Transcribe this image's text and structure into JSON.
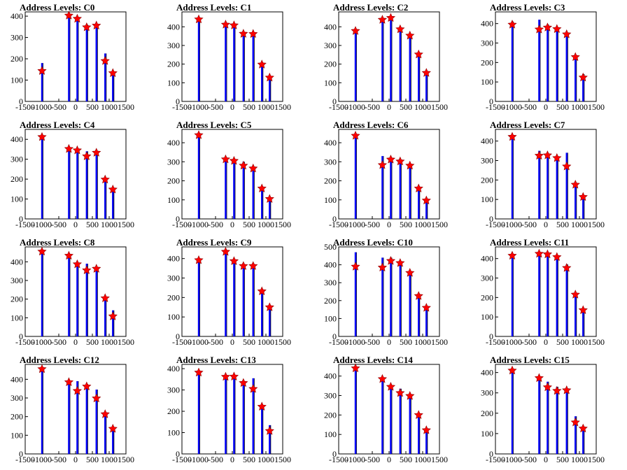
{
  "figure": {
    "background": "#ffffff",
    "bar_color": "#0000ff",
    "thin_line_color": "#000000",
    "marker_color": "#ff0000",
    "marker_shape": "star"
  },
  "chart_data": [
    {
      "type": "bar",
      "title": "Address Levels: C0",
      "xlim": [
        -1500,
        1500
      ],
      "ylim": [
        0,
        420
      ],
      "x_ticks": [
        -1500,
        -1000,
        -500,
        0,
        500,
        1000,
        1500
      ],
      "y_ticks": [
        0,
        100,
        200,
        300,
        400
      ],
      "peaks": [
        {
          "x": -1000,
          "bar": 180,
          "star": 143
        },
        {
          "x": -200,
          "bar": 400,
          "star": 403
        },
        {
          "x": 50,
          "bar": 390,
          "star": 388
        },
        {
          "x": 330,
          "bar": 360,
          "star": 348
        },
        {
          "x": 620,
          "bar": 360,
          "star": 356
        },
        {
          "x": 880,
          "bar": 225,
          "star": 190
        },
        {
          "x": 1110,
          "bar": 140,
          "star": 133
        }
      ]
    },
    {
      "type": "bar",
      "title": "Address Levels: C1",
      "xlim": [
        -1500,
        1500
      ],
      "ylim": [
        0,
        480
      ],
      "x_ticks": [
        -1500,
        -1000,
        -500,
        0,
        500,
        1000,
        1500
      ],
      "y_ticks": [
        0,
        100,
        200,
        300,
        400
      ],
      "peaks": [
        {
          "x": -1000,
          "bar": 445,
          "star": 440
        },
        {
          "x": -200,
          "bar": 415,
          "star": 412
        },
        {
          "x": 50,
          "bar": 415,
          "star": 408
        },
        {
          "x": 330,
          "bar": 370,
          "star": 363
        },
        {
          "x": 620,
          "bar": 370,
          "star": 362
        },
        {
          "x": 880,
          "bar": 200,
          "star": 198
        },
        {
          "x": 1110,
          "bar": 135,
          "star": 128
        }
      ]
    },
    {
      "type": "bar",
      "title": "Address Levels: C2",
      "xlim": [
        -1500,
        1500
      ],
      "ylim": [
        0,
        480
      ],
      "x_ticks": [
        -1500,
        -1000,
        -500,
        0,
        500,
        1000,
        1500
      ],
      "y_ticks": [
        0,
        100,
        200,
        300,
        400
      ],
      "peaks": [
        {
          "x": -1000,
          "bar": 385,
          "star": 378
        },
        {
          "x": -200,
          "bar": 445,
          "star": 438
        },
        {
          "x": 50,
          "bar": 445,
          "star": 448
        },
        {
          "x": 330,
          "bar": 395,
          "star": 387
        },
        {
          "x": 620,
          "bar": 360,
          "star": 353
        },
        {
          "x": 880,
          "bar": 255,
          "star": 252
        },
        {
          "x": 1110,
          "bar": 160,
          "star": 153
        }
      ]
    },
    {
      "type": "bar",
      "title": "Address Levels: C3",
      "xlim": [
        -1500,
        1500
      ],
      "ylim": [
        0,
        460
      ],
      "x_ticks": [
        -1500,
        -1000,
        -500,
        0,
        500,
        1000,
        1500
      ],
      "y_ticks": [
        0,
        100,
        200,
        300,
        400
      ],
      "peaks": [
        {
          "x": -1000,
          "bar": 410,
          "star": 395
        },
        {
          "x": -200,
          "bar": 420,
          "star": 370
        },
        {
          "x": 50,
          "bar": 395,
          "star": 380
        },
        {
          "x": 330,
          "bar": 380,
          "star": 372
        },
        {
          "x": 620,
          "bar": 350,
          "star": 345
        },
        {
          "x": 880,
          "bar": 235,
          "star": 228
        },
        {
          "x": 1110,
          "bar": 140,
          "star": 123
        }
      ]
    },
    {
      "type": "bar",
      "title": "Address Levels: C4",
      "xlim": [
        -1500,
        1500
      ],
      "ylim": [
        0,
        450
      ],
      "x_ticks": [
        -1500,
        -1000,
        -500,
        0,
        500,
        1000,
        1500
      ],
      "y_ticks": [
        0,
        100,
        200,
        300,
        400
      ],
      "peaks": [
        {
          "x": -1000,
          "bar": 410,
          "star": 412
        },
        {
          "x": -200,
          "bar": 355,
          "star": 352
        },
        {
          "x": 50,
          "bar": 355,
          "star": 345
        },
        {
          "x": 330,
          "bar": 340,
          "star": 315
        },
        {
          "x": 620,
          "bar": 340,
          "star": 333
        },
        {
          "x": 880,
          "bar": 200,
          "star": 198
        },
        {
          "x": 1110,
          "bar": 150,
          "star": 148
        }
      ]
    },
    {
      "type": "bar",
      "title": "Address Levels: C5",
      "xlim": [
        -1500,
        1500
      ],
      "ylim": [
        0,
        470
      ],
      "x_ticks": [
        -1500,
        -1000,
        -500,
        0,
        500,
        1000,
        1500
      ],
      "y_ticks": [
        0,
        100,
        200,
        300,
        400
      ],
      "peaks": [
        {
          "x": -1000,
          "bar": 440,
          "star": 440
        },
        {
          "x": -200,
          "bar": 320,
          "star": 313
        },
        {
          "x": 50,
          "bar": 310,
          "star": 305
        },
        {
          "x": 330,
          "bar": 300,
          "star": 280
        },
        {
          "x": 620,
          "bar": 270,
          "star": 265
        },
        {
          "x": 880,
          "bar": 165,
          "star": 160
        },
        {
          "x": 1110,
          "bar": 110,
          "star": 105
        }
      ]
    },
    {
      "type": "bar",
      "title": "Address Levels: C6",
      "xlim": [
        -1500,
        1500
      ],
      "ylim": [
        0,
        470
      ],
      "x_ticks": [
        -1500,
        -1000,
        -500,
        0,
        500,
        1000,
        1500
      ],
      "y_ticks": [
        0,
        100,
        200,
        300,
        400
      ],
      "peaks": [
        {
          "x": -1000,
          "bar": 440,
          "star": 437
        },
        {
          "x": -200,
          "bar": 330,
          "star": 283
        },
        {
          "x": 50,
          "bar": 320,
          "star": 312
        },
        {
          "x": 330,
          "bar": 310,
          "star": 302
        },
        {
          "x": 620,
          "bar": 290,
          "star": 280
        },
        {
          "x": 880,
          "bar": 165,
          "star": 160
        },
        {
          "x": 1110,
          "bar": 100,
          "star": 97
        }
      ]
    },
    {
      "type": "bar",
      "title": "Address Levels: C7",
      "xlim": [
        -1500,
        1500
      ],
      "ylim": [
        0,
        460
      ],
      "x_ticks": [
        -1500,
        -1000,
        -500,
        0,
        500,
        1000,
        1500
      ],
      "y_ticks": [
        0,
        100,
        200,
        300,
        400
      ],
      "peaks": [
        {
          "x": -1000,
          "bar": 430,
          "star": 422
        },
        {
          "x": -200,
          "bar": 350,
          "star": 325
        },
        {
          "x": 50,
          "bar": 335,
          "star": 327
        },
        {
          "x": 330,
          "bar": 320,
          "star": 313
        },
        {
          "x": 620,
          "bar": 340,
          "star": 270
        },
        {
          "x": 880,
          "bar": 180,
          "star": 176
        },
        {
          "x": 1110,
          "bar": 120,
          "star": 113
        }
      ]
    },
    {
      "type": "bar",
      "title": "Address Levels: C8",
      "xlim": [
        -1500,
        1500
      ],
      "ylim": [
        0,
        480
      ],
      "x_ticks": [
        -1500,
        -1000,
        -500,
        0,
        500,
        1000,
        1500
      ],
      "y_ticks": [
        0,
        100,
        200,
        300,
        400
      ],
      "peaks": [
        {
          "x": -1000,
          "bar": 460,
          "star": 455
        },
        {
          "x": -200,
          "bar": 440,
          "star": 433
        },
        {
          "x": 50,
          "bar": 390,
          "star": 387
        },
        {
          "x": 330,
          "bar": 390,
          "star": 355
        },
        {
          "x": 620,
          "bar": 370,
          "star": 363
        },
        {
          "x": 880,
          "bar": 210,
          "star": 205
        },
        {
          "x": 1110,
          "bar": 140,
          "star": 108
        }
      ]
    },
    {
      "type": "bar",
      "title": "Address Levels: C9",
      "xlim": [
        -1500,
        1500
      ],
      "ylim": [
        0,
        460
      ],
      "x_ticks": [
        -1500,
        -1000,
        -500,
        0,
        500,
        1000,
        1500
      ],
      "y_ticks": [
        0,
        100,
        200,
        300,
        400
      ],
      "peaks": [
        {
          "x": -1000,
          "bar": 395,
          "star": 392
        },
        {
          "x": -200,
          "bar": 440,
          "star": 435
        },
        {
          "x": 50,
          "bar": 395,
          "star": 387
        },
        {
          "x": 330,
          "bar": 370,
          "star": 362
        },
        {
          "x": 620,
          "bar": 370,
          "star": 362
        },
        {
          "x": 880,
          "bar": 235,
          "star": 232
        },
        {
          "x": 1110,
          "bar": 155,
          "star": 150
        }
      ]
    },
    {
      "type": "bar",
      "title": "Address Levels: C10",
      "xlim": [
        -1500,
        1500
      ],
      "ylim": [
        0,
        500
      ],
      "x_ticks": [
        -1500,
        -1000,
        -500,
        0,
        500,
        1000,
        1500
      ],
      "y_ticks": [
        0,
        100,
        200,
        300,
        400,
        500
      ],
      "peaks": [
        {
          "x": -1000,
          "bar": 470,
          "star": 390
        },
        {
          "x": -200,
          "bar": 440,
          "star": 385
        },
        {
          "x": 50,
          "bar": 440,
          "star": 422
        },
        {
          "x": 330,
          "bar": 420,
          "star": 410
        },
        {
          "x": 620,
          "bar": 360,
          "star": 355
        },
        {
          "x": 880,
          "bar": 230,
          "star": 226
        },
        {
          "x": 1110,
          "bar": 165,
          "star": 160
        }
      ]
    },
    {
      "type": "bar",
      "title": "Address Levels: C11",
      "xlim": [
        -1500,
        1500
      ],
      "ylim": [
        0,
        460
      ],
      "x_ticks": [
        -1500,
        -1000,
        -500,
        0,
        500,
        1000,
        1500
      ],
      "y_ticks": [
        0,
        100,
        200,
        300,
        400
      ],
      "peaks": [
        {
          "x": -1000,
          "bar": 420,
          "star": 415
        },
        {
          "x": -200,
          "bar": 430,
          "star": 425
        },
        {
          "x": 50,
          "bar": 430,
          "star": 422
        },
        {
          "x": 330,
          "bar": 410,
          "star": 408
        },
        {
          "x": 620,
          "bar": 370,
          "star": 352
        },
        {
          "x": 880,
          "bar": 220,
          "star": 215
        },
        {
          "x": 1110,
          "bar": 140,
          "star": 135
        }
      ]
    },
    {
      "type": "bar",
      "title": "Address Levels: C12",
      "xlim": [
        -1500,
        1500
      ],
      "ylim": [
        0,
        480
      ],
      "x_ticks": [
        -1500,
        -1000,
        -500,
        0,
        500,
        1000,
        1500
      ],
      "y_ticks": [
        0,
        100,
        200,
        300,
        400
      ],
      "peaks": [
        {
          "x": -1000,
          "bar": 460,
          "star": 455
        },
        {
          "x": -200,
          "bar": 390,
          "star": 385
        },
        {
          "x": 50,
          "bar": 390,
          "star": 338
        },
        {
          "x": 330,
          "bar": 375,
          "star": 362
        },
        {
          "x": 620,
          "bar": 345,
          "star": 298
        },
        {
          "x": 880,
          "bar": 220,
          "star": 213
        },
        {
          "x": 1110,
          "bar": 140,
          "star": 135
        }
      ]
    },
    {
      "type": "bar",
      "title": "Address Levels: C13",
      "xlim": [
        -1500,
        1500
      ],
      "ylim": [
        0,
        420
      ],
      "x_ticks": [
        -1500,
        -1000,
        -500,
        0,
        500,
        1000,
        1500
      ],
      "y_ticks": [
        0,
        100,
        200,
        300,
        400
      ],
      "peaks": [
        {
          "x": -1000,
          "bar": 385,
          "star": 382
        },
        {
          "x": -200,
          "bar": 365,
          "star": 362
        },
        {
          "x": 50,
          "bar": 365,
          "star": 363
        },
        {
          "x": 330,
          "bar": 340,
          "star": 333
        },
        {
          "x": 620,
          "bar": 355,
          "star": 305
        },
        {
          "x": 880,
          "bar": 225,
          "star": 222
        },
        {
          "x": 1110,
          "bar": 135,
          "star": 108
        }
      ]
    },
    {
      "type": "bar",
      "title": "Address Levels: C14",
      "xlim": [
        -1500,
        1500
      ],
      "ylim": [
        0,
        460
      ],
      "x_ticks": [
        -1500,
        -1000,
        -500,
        0,
        500,
        1000,
        1500
      ],
      "y_ticks": [
        0,
        100,
        200,
        300,
        400
      ],
      "peaks": [
        {
          "x": -1000,
          "bar": 445,
          "star": 440
        },
        {
          "x": -200,
          "bar": 390,
          "star": 385
        },
        {
          "x": 50,
          "bar": 350,
          "star": 345
        },
        {
          "x": 330,
          "bar": 335,
          "star": 313
        },
        {
          "x": 620,
          "bar": 300,
          "star": 298
        },
        {
          "x": 880,
          "bar": 205,
          "star": 200
        },
        {
          "x": 1110,
          "bar": 125,
          "star": 122
        }
      ]
    },
    {
      "type": "bar",
      "title": "Address Levels: C15",
      "xlim": [
        -1500,
        1500
      ],
      "ylim": [
        0,
        440
      ],
      "x_ticks": [
        -1500,
        -1000,
        -500,
        0,
        500,
        1000,
        1500
      ],
      "y_ticks": [
        0,
        100,
        200,
        300,
        400
      ],
      "peaks": [
        {
          "x": -1000,
          "bar": 420,
          "star": 410
        },
        {
          "x": -200,
          "bar": 380,
          "star": 373
        },
        {
          "x": 50,
          "bar": 355,
          "star": 328
        },
        {
          "x": 330,
          "bar": 330,
          "star": 310
        },
        {
          "x": 620,
          "bar": 320,
          "star": 313
        },
        {
          "x": 880,
          "bar": 185,
          "star": 155
        },
        {
          "x": 1110,
          "bar": 130,
          "star": 125
        }
      ]
    }
  ]
}
